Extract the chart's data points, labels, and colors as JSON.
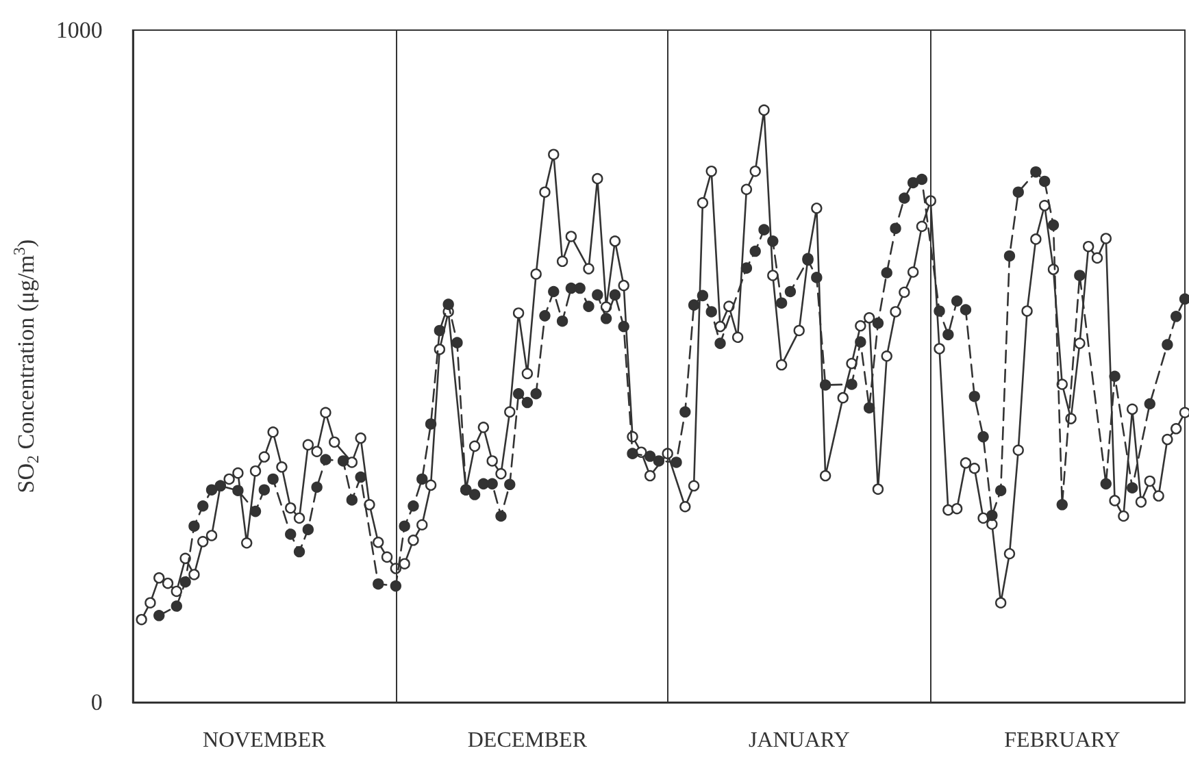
{
  "chart_data": {
    "type": "line",
    "ylabel": "SO$_{2}$ Concentration (μg/m$^{3}$)",
    "categories": [
      null,
      null,
      null,
      null,
      null,
      null,
      null,
      null,
      null,
      null,
      null,
      null,
      null,
      null,
      null,
      "NOVEMBER",
      null,
      null,
      null,
      null,
      null,
      null,
      null,
      null,
      null,
      null,
      null,
      null,
      null,
      null,
      null,
      null,
      null,
      null,
      null,
      null,
      null,
      null,
      null,
      null,
      null,
      null,
      null,
      null,
      null,
      "DECEMBER",
      null,
      null,
      null,
      null,
      null,
      null,
      null,
      null,
      null,
      null,
      null,
      null,
      null,
      null,
      null,
      null,
      null,
      null,
      null,
      null,
      null,
      null,
      null,
      null,
      null,
      null,
      null,
      null,
      null,
      null,
      "JANUARY",
      null,
      null,
      null,
      null,
      null,
      null,
      null,
      null,
      null,
      null,
      null,
      null,
      null,
      null,
      null,
      null,
      null,
      null,
      null,
      null,
      null,
      null,
      null,
      null,
      null,
      null,
      null,
      null,
      null,
      "FEBRUARY",
      null,
      null,
      null,
      null,
      null,
      null,
      null,
      null,
      null,
      null,
      null,
      null,
      null,
      null
    ],
    "ylim": [
      0,
      1000
    ],
    "yticks": [
      0,
      1000
    ],
    "marker": "circle",
    "grid": false,
    "series": [
      {
        "color": "#333333",
        "line_style": "solid",
        "values": [
          null,
          123,
          148,
          185,
          177,
          165,
          214,
          190,
          239,
          248,
          322,
          332,
          341,
          237,
          344,
          365,
          402,
          350,
          289,
          274,
          383,
          373,
          431,
          387,
          null,
          357,
          393,
          294,
          238,
          216,
          199,
          206,
          241,
          264,
          323,
          525,
          581,
          null,
          316,
          381,
          409,
          359,
          340,
          432,
          579,
          489,
          637,
          759,
          815,
          656,
          693,
          null,
          645,
          779,
          588,
          686,
          620,
          395,
          372,
          337,
          null,
          370,
          null,
          291,
          322,
          743,
          790,
          559,
          589,
          543,
          763,
          790,
          881,
          635,
          502,
          null,
          553,
          660,
          735,
          337,
          null,
          453,
          504,
          560,
          572,
          317,
          515,
          581,
          610,
          640,
          708,
          746,
          526,
          286,
          288,
          356,
          348,
          274,
          265,
          148,
          221,
          375,
          582,
          689,
          739,
          644,
          473,
          422,
          534,
          678,
          661,
          690,
          300,
          277,
          436,
          298,
          329,
          307,
          391,
          407,
          431
        ]
      },
      {
        "color": "#333333",
        "line_style": "dashed",
        "values": [
          null,
          null,
          null,
          129,
          null,
          143,
          179,
          262,
          292,
          316,
          322,
          null,
          315,
          null,
          284,
          316,
          332,
          null,
          250,
          224,
          257,
          320,
          361,
          null,
          359,
          301,
          335,
          null,
          176,
          null,
          173,
          262,
          292,
          332,
          414,
          553,
          592,
          535,
          316,
          309,
          325,
          325,
          277,
          324,
          459,
          446,
          459,
          575,
          611,
          567,
          616,
          616,
          589,
          606,
          571,
          606,
          559,
          370,
          null,
          366,
          359,
          null,
          357,
          432,
          591,
          605,
          581,
          534,
          null,
          null,
          646,
          671,
          703,
          686,
          594,
          611,
          null,
          658,
          632,
          472,
          null,
          null,
          473,
          536,
          438,
          564,
          639,
          705,
          750,
          773,
          778,
          null,
          582,
          547,
          597,
          584,
          455,
          395,
          278,
          315,
          664,
          759,
          null,
          789,
          775,
          710,
          294,
          null,
          635,
          null,
          null,
          325,
          485,
          null,
          319,
          null,
          444,
          null,
          532,
          574,
          600
        ]
      }
    ]
  }
}
